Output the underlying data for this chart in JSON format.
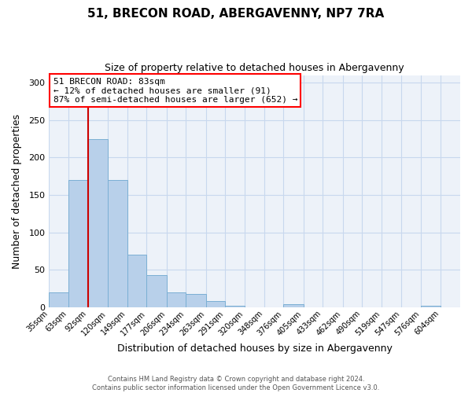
{
  "title": "51, BRECON ROAD, ABERGAVENNY, NP7 7RA",
  "subtitle": "Size of property relative to detached houses in Abergavenny",
  "xlabel": "Distribution of detached houses by size in Abergavenny",
  "ylabel": "Number of detached properties",
  "bin_labels": [
    "35sqm",
    "63sqm",
    "92sqm",
    "120sqm",
    "149sqm",
    "177sqm",
    "206sqm",
    "234sqm",
    "263sqm",
    "291sqm",
    "320sqm",
    "348sqm",
    "376sqm",
    "405sqm",
    "433sqm",
    "462sqm",
    "490sqm",
    "519sqm",
    "547sqm",
    "576sqm",
    "604sqm"
  ],
  "bar_values": [
    20,
    170,
    225,
    170,
    70,
    43,
    20,
    18,
    8,
    2,
    0,
    0,
    4,
    0,
    0,
    0,
    0,
    0,
    0,
    2,
    0
  ],
  "bar_color": "#b8d0ea",
  "bar_edge_color": "#7bafd4",
  "grid_color": "#c8d8ee",
  "background_color": "#edf2f9",
  "vline_x": 92,
  "vline_color": "#cc0000",
  "annotation_box_text": "51 BRECON ROAD: 83sqm\n← 12% of detached houses are smaller (91)\n87% of semi-detached houses are larger (652) →",
  "ylim": [
    0,
    310
  ],
  "yticks": [
    0,
    50,
    100,
    150,
    200,
    250,
    300
  ],
  "footer_text": "Contains HM Land Registry data © Crown copyright and database right 2024.\nContains public sector information licensed under the Open Government Licence v3.0.",
  "bin_edges": [
    35,
    63,
    92,
    120,
    149,
    177,
    206,
    234,
    263,
    291,
    320,
    348,
    376,
    405,
    433,
    462,
    490,
    519,
    547,
    576,
    604,
    633
  ]
}
